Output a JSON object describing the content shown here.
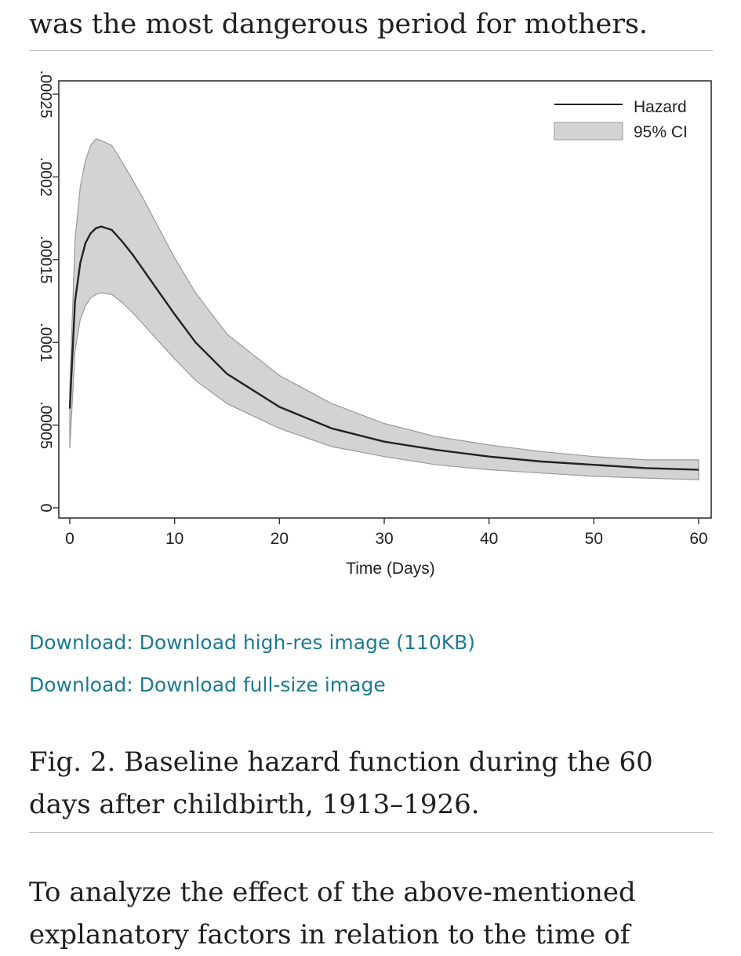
{
  "article": {
    "top_text": "was the most dangerous period for mothers.",
    "downloads": [
      "Download: Download high-res image (110KB)",
      "Download: Download full-size image"
    ],
    "caption": "Fig. 2. Baseline hazard function during the 60 days after childbirth, 1913–1926.",
    "bottom_text": "To analyze the effect of the above-mentioned explanatory factors in relation to the time of"
  },
  "chart_data": {
    "type": "line",
    "xlabel": "Time (Days)",
    "ylabel": "",
    "xlim": [
      0,
      60
    ],
    "ylim": [
      0,
      0.00025
    ],
    "x_ticks": [
      "0",
      "10",
      "20",
      "30",
      "40",
      "50",
      "60"
    ],
    "y_ticks": [
      "0",
      ".00005",
      ".0001",
      ".00015",
      ".0002",
      ".00025"
    ],
    "legend_position": "top-right",
    "grid": false,
    "series": [
      {
        "name": "Hazard",
        "kind": "line",
        "color": "#222222",
        "x": [
          0,
          0.5,
          1,
          1.5,
          2,
          2.5,
          3,
          4,
          5,
          6,
          7,
          8,
          10,
          12,
          15,
          20,
          25,
          30,
          35,
          40,
          45,
          50,
          55,
          60
        ],
        "y": [
          6e-05,
          0.000125,
          0.000148,
          0.00016,
          0.000166,
          0.000169,
          0.00017,
          0.000168,
          0.000161,
          0.000153,
          0.000144,
          0.000135,
          0.000117,
          0.0001,
          8.1e-05,
          6.1e-05,
          4.8e-05,
          4e-05,
          3.5e-05,
          3.1e-05,
          2.8e-05,
          2.6e-05,
          2.4e-05,
          2.3e-05
        ]
      },
      {
        "name": "95% CI",
        "kind": "band",
        "color": "#d3d3d3",
        "x": [
          0,
          0.5,
          1,
          1.5,
          2,
          2.5,
          3,
          4,
          5,
          6,
          7,
          8,
          10,
          12,
          15,
          20,
          25,
          30,
          35,
          40,
          45,
          50,
          55,
          60
        ],
        "lower": [
          3.6e-05,
          9.5e-05,
          0.000114,
          0.000122,
          0.000127,
          0.000129,
          0.00013,
          0.000129,
          0.000124,
          0.000118,
          0.000111,
          0.000104,
          9e-05,
          7.7e-05,
          6.3e-05,
          4.8e-05,
          3.7e-05,
          3.1e-05,
          2.6e-05,
          2.3e-05,
          2.1e-05,
          1.9e-05,
          1.8e-05,
          1.7e-05
        ],
        "upper": [
          7.2e-05,
          0.000162,
          0.000194,
          0.00021,
          0.000219,
          0.000223,
          0.000222,
          0.000219,
          0.000209,
          0.000198,
          0.000187,
          0.000175,
          0.000151,
          0.00013,
          0.000105,
          8e-05,
          6.3e-05,
          5.1e-05,
          4.3e-05,
          3.8e-05,
          3.4e-05,
          3.1e-05,
          2.9e-05,
          2.9e-05
        ]
      }
    ]
  }
}
